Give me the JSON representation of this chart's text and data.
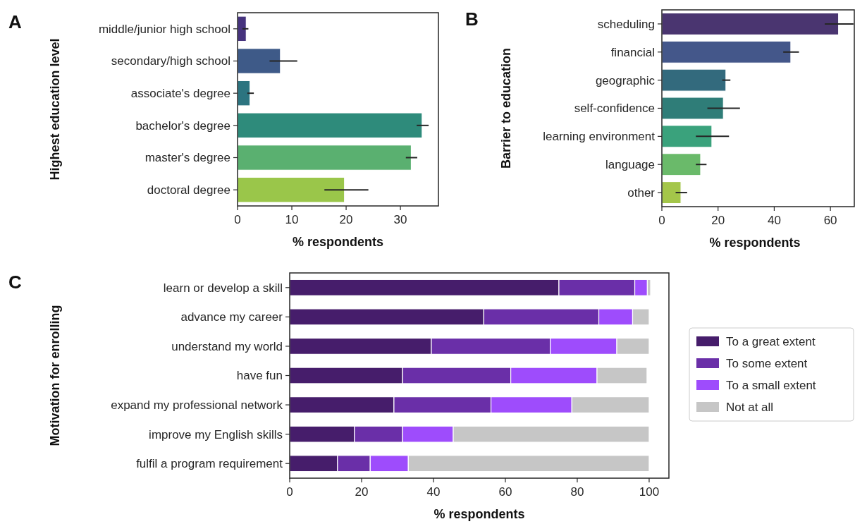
{
  "chart_data": [
    {
      "type": "bar",
      "orientation": "horizontal",
      "title": "A",
      "ylabel": "Highest education level",
      "xlabel": "% respondents",
      "categories": [
        "middle/junior high school",
        "secondary/high school",
        "associate's degree",
        "bachelor's degree",
        "master's degree",
        "doctoral degree"
      ],
      "values": [
        1.6,
        7.9,
        2.3,
        34.0,
        32.0,
        19.7
      ],
      "errors": [
        [
          0.9,
          2.0
        ],
        [
          5.9,
          11.0
        ],
        [
          1.8,
          3.0
        ],
        [
          33.0,
          35.2
        ],
        [
          31.0,
          33.1
        ],
        [
          16.0,
          24.1
        ]
      ],
      "colors": [
        "#46337e",
        "#3e5a88",
        "#2c7480",
        "#2e8b7b",
        "#5ab070",
        "#9ac64a"
      ],
      "xlim": [
        0,
        37
      ],
      "xticks": [
        0,
        10,
        20,
        30
      ]
    },
    {
      "type": "bar",
      "orientation": "horizontal",
      "title": "B",
      "ylabel": "Barrier to education",
      "xlabel": "% respondents",
      "categories": [
        "scheduling",
        "financial",
        "geographic",
        "self-confidence",
        "learning environment",
        "language",
        "other"
      ],
      "values": [
        62.9,
        45.9,
        22.8,
        21.9,
        17.8,
        13.8,
        6.8
      ],
      "errors": [
        [
          58.0,
          68.2
        ],
        [
          43.2,
          48.8
        ],
        [
          21.5,
          24.4
        ],
        [
          16.2,
          27.8
        ],
        [
          12.1,
          23.9
        ],
        [
          12.1,
          15.9
        ],
        [
          4.9,
          9.0
        ]
      ],
      "colors": [
        "#4a3570",
        "#44578a",
        "#336a7d",
        "#2f7d78",
        "#3aa27c",
        "#6aba6a",
        "#a4c64a"
      ],
      "xlim": [
        0,
        68.5
      ],
      "xticks": [
        0,
        20,
        40,
        60
      ]
    },
    {
      "type": "bar",
      "orientation": "horizontal",
      "stacked": true,
      "title": "C",
      "ylabel": "Motivation for enrolling",
      "xlabel": "% respondents",
      "legend": "right",
      "categories": [
        "learn or develop a skill",
        "advance my career",
        "understand my world",
        "have fun",
        "expand my professional network",
        "improve my English skills",
        "fulfil a program requirement"
      ],
      "xlim": [
        0,
        105.5
      ],
      "xticks": [
        0,
        20,
        40,
        60,
        80,
        100
      ],
      "series": [
        {
          "name": "To a great extent",
          "color": "#461d6b",
          "values": [
            74.9,
            54.0,
            39.4,
            31.4,
            29.0,
            18.0,
            13.3
          ]
        },
        {
          "name": "To some extent",
          "color": "#6a2fa8",
          "values": [
            21.1,
            32.0,
            33.1,
            30.1,
            27.0,
            13.4,
            9.1
          ]
        },
        {
          "name": "To a small extent",
          "color": "#9e4cfc",
          "values": [
            3.5,
            9.4,
            18.5,
            24.0,
            22.5,
            14.1,
            10.6
          ]
        },
        {
          "name": "Not at all",
          "color": "#c6c6c6",
          "values": [
            0.9,
            4.6,
            9.0,
            13.9,
            21.5,
            54.5,
            67.0
          ]
        }
      ]
    }
  ]
}
